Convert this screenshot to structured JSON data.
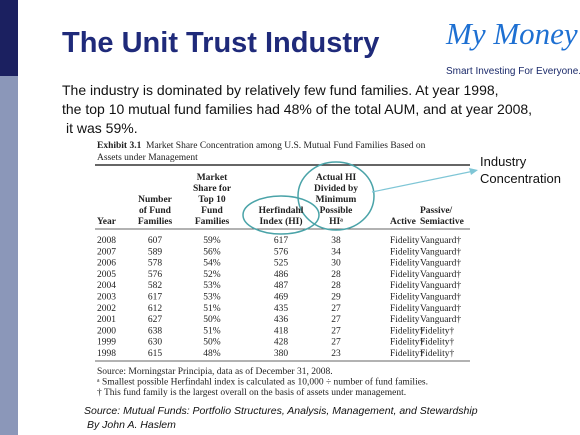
{
  "slide": {
    "title": "The Unit Trust Industry",
    "logo": {
      "name": "My Money",
      "tagline": "Smart Investing For Everyone."
    },
    "intro": [
      "The industry is dominated by relatively few fund families. At year 1998,",
      "the top 10 mutual fund families had 48% of the total AUM, and at year 2008,",
      "it was 59%."
    ],
    "annotation": [
      "Industry",
      "Concentration"
    ],
    "source": [
      "Source: Mutual Funds: Portfolio Structures, Analysis, Management, and Stewardship",
      "By John A. Haslem"
    ]
  },
  "table": {
    "exhibit": "Exhibit 3.1",
    "caption": [
      "Market Share Concentration among U.S. Mutual Fund Families Based on",
      "Assets under Management"
    ],
    "headers": [
      [
        "Year"
      ],
      [
        "Number",
        "of Fund",
        "Families"
      ],
      [
        "Market",
        "Share for",
        "Top 10",
        "Fund",
        "Families"
      ],
      [
        "Herfindahl",
        "Index (HI)"
      ],
      [
        "Actual HI",
        "Divided by",
        "Minimum",
        "Possible",
        "HIᵃ"
      ],
      [
        "Active"
      ],
      [
        "Passive/",
        "Semiactive"
      ]
    ],
    "rows": [
      [
        "2008",
        "607",
        "59%",
        "617",
        "38",
        "Fidelity",
        "Vanguard†"
      ],
      [
        "2007",
        "589",
        "56%",
        "576",
        "34",
        "Fidelity",
        "Vanguard†"
      ],
      [
        "2006",
        "578",
        "54%",
        "525",
        "30",
        "Fidelity",
        "Vanguard†"
      ],
      [
        "2005",
        "576",
        "52%",
        "486",
        "28",
        "Fidelity",
        "Vanguard†"
      ],
      [
        "2004",
        "582",
        "53%",
        "487",
        "28",
        "Fidelity",
        "Vanguard†"
      ],
      [
        "2003",
        "617",
        "53%",
        "469",
        "29",
        "Fidelity",
        "Vanguard†"
      ],
      [
        "2002",
        "612",
        "51%",
        "435",
        "27",
        "Fidelity",
        "Vanguard†"
      ],
      [
        "2001",
        "627",
        "50%",
        "436",
        "27",
        "Fidelity",
        "Vanguard†"
      ],
      [
        "2000",
        "638",
        "51%",
        "418",
        "27",
        "Fidelity†",
        "Fidelity†"
      ],
      [
        "1999",
        "630",
        "50%",
        "428",
        "27",
        "Fidelity†",
        "Fidelity†"
      ],
      [
        "1998",
        "615",
        "48%",
        "380",
        "23",
        "Fidelity†",
        "Fidelity†"
      ]
    ],
    "footnotes": [
      "Source: Morningstar Principia, data as of December 31, 2008.",
      "ᵃ Smallest possible Herfindahl index is calculated as 10,000 ÷ number of fund families.",
      "† This fund family is the largest overall on the basis of assets under management."
    ]
  }
}
